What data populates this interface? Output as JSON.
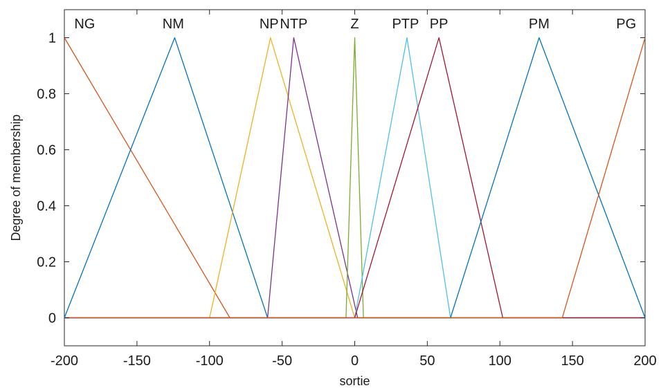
{
  "chart_data": {
    "type": "line",
    "title": "",
    "xlabel": "sortie",
    "ylabel": "Degree of membership",
    "xlim": [
      -200,
      200
    ],
    "ylim": [
      -0.1,
      1.1
    ],
    "xticks": [
      -200,
      -150,
      -100,
      -50,
      0,
      50,
      100,
      150,
      200
    ],
    "xtick_labels": [
      "-200",
      "-150",
      "-100",
      "-50",
      "0",
      "50",
      "100",
      "150",
      "200"
    ],
    "yticks": [
      0,
      0.2,
      0.4,
      0.6,
      0.8,
      1
    ],
    "ytick_labels": [
      "0",
      "0.2",
      "0.4",
      "0.6",
      "0.8",
      "1"
    ],
    "grid": false,
    "legend": "none",
    "series": [
      {
        "name": "NG",
        "label_x": -186,
        "color": "#D95319",
        "x": [
          -200,
          -200,
          -86
        ],
        "y": [
          1,
          1,
          0
        ]
      },
      {
        "name": "NM",
        "label_x": -125,
        "color": "#0072BD",
        "x": [
          -200,
          -124,
          -60
        ],
        "y": [
          0,
          1,
          0
        ]
      },
      {
        "name": "NP",
        "label_x": -59,
        "color": "#EDB120",
        "x": [
          -100,
          -58,
          0
        ],
        "y": [
          0,
          1,
          0
        ]
      },
      {
        "name": "NTP",
        "label_x": -42,
        "color": "#7E2F8E",
        "x": [
          -60,
          -42,
          2
        ],
        "y": [
          0,
          1,
          0
        ]
      },
      {
        "name": "Z",
        "label_x": 0,
        "color": "#77AC30",
        "x": [
          -6,
          0,
          6
        ],
        "y": [
          0,
          1,
          0
        ]
      },
      {
        "name": "PTP",
        "label_x": 35,
        "color": "#4DBEEE",
        "x": [
          0,
          36,
          66
        ],
        "y": [
          0,
          1,
          0
        ]
      },
      {
        "name": "PP",
        "label_x": 58,
        "color": "#A2142F",
        "x": [
          0,
          58,
          102
        ],
        "y": [
          0,
          1,
          0
        ]
      },
      {
        "name": "PM",
        "label_x": 127,
        "color": "#0072BD",
        "x": [
          66,
          127,
          200
        ],
        "y": [
          0,
          1,
          0
        ]
      },
      {
        "name": "PG",
        "label_x": 187,
        "color": "#D95319",
        "x": [
          143,
          200,
          200
        ],
        "y": [
          0,
          1,
          1
        ]
      }
    ]
  },
  "colors": {
    "axes": "#262626",
    "background": "#ffffff"
  }
}
